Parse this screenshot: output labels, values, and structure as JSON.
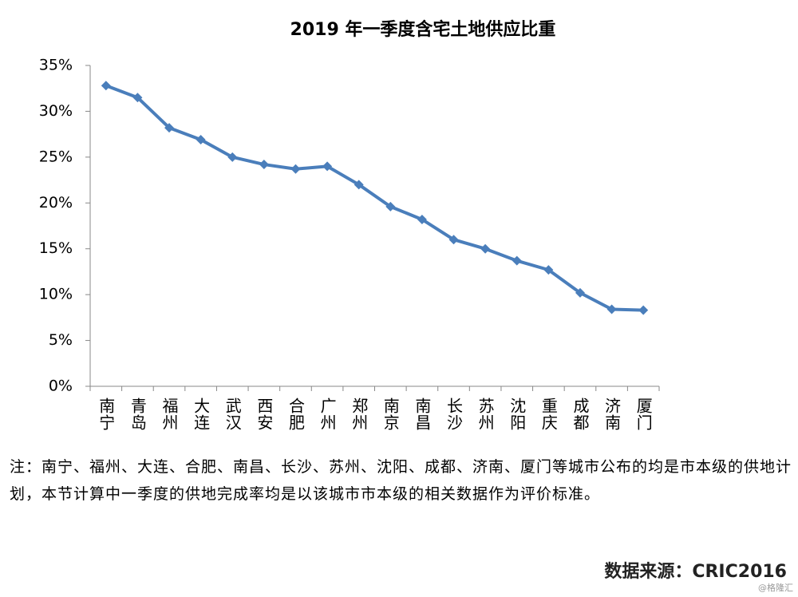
{
  "chart_data": {
    "type": "line",
    "title": "2019 年一季度含宅土地供应比重",
    "categories": [
      "南宁",
      "青岛",
      "福州",
      "大连",
      "武汉",
      "西安",
      "合肥",
      "广州",
      "郑州",
      "南京",
      "南昌",
      "长沙",
      "苏州",
      "沈阳",
      "重庆",
      "成都",
      "济南",
      "厦门"
    ],
    "values": [
      32.8,
      31.5,
      28.2,
      26.9,
      25.0,
      24.2,
      23.7,
      24.0,
      22.0,
      19.6,
      18.2,
      16.0,
      15.0,
      13.7,
      12.7,
      10.2,
      8.4,
      8.3
    ],
    "color": "#4a7ebb",
    "ylim": [
      0,
      35
    ],
    "yticks": [
      {
        "value": 0,
        "label": "0%"
      },
      {
        "value": 5,
        "label": "5%"
      },
      {
        "value": 10,
        "label": "10%"
      },
      {
        "value": 15,
        "label": "15%"
      },
      {
        "value": 20,
        "label": "20%"
      },
      {
        "value": 25,
        "label": "25%"
      },
      {
        "value": 30,
        "label": "30%"
      },
      {
        "value": 35,
        "label": "35%"
      }
    ],
    "grid": false
  },
  "note": "注：南宁、福州、大连、合肥、南昌、长沙、苏州、沈阳、成都、济南、厦门等城市公布的均是市本级的供地计划，本节计算中一季度的供地完成率均是以该城市市本级的相关数据作为评价标准。",
  "source": "数据来源：CRIC2016",
  "watermark": "@格隆汇"
}
